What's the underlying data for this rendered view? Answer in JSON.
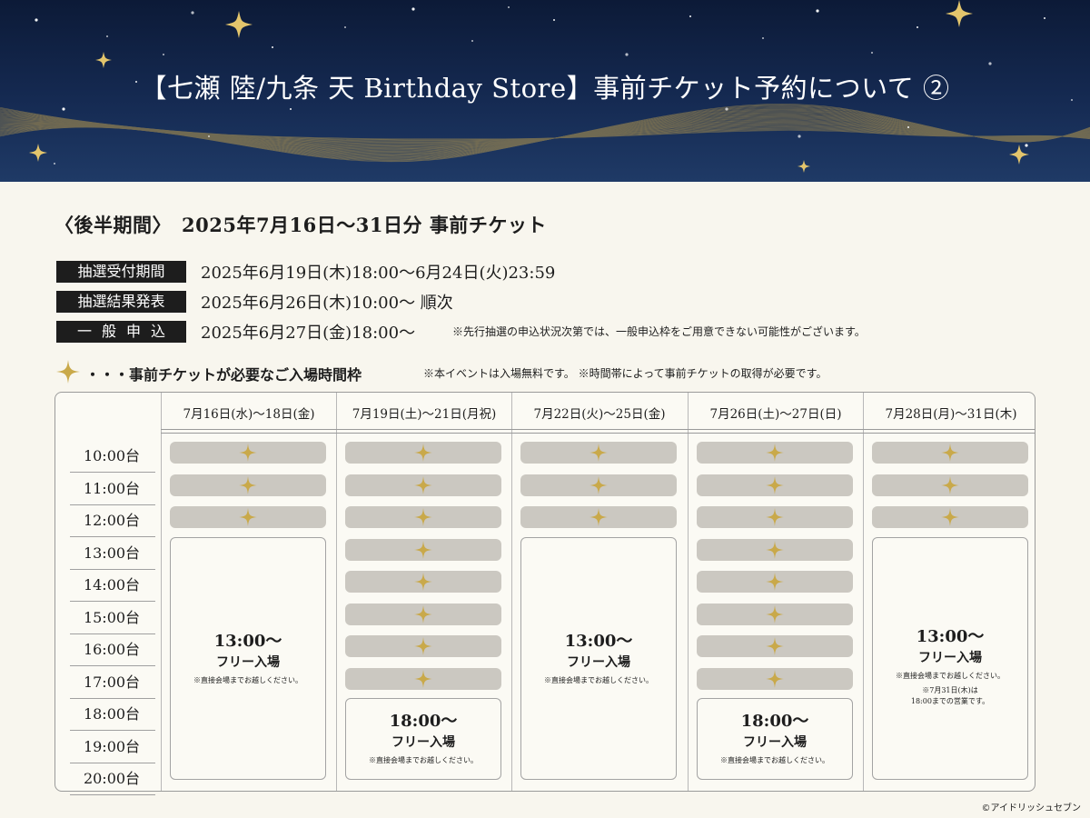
{
  "header": {
    "title": "【七瀬 陸/九条 天 Birthday Store】事前チケット予約について ②"
  },
  "subtitle": "〈後半期間〉　2025年7月16日〜31日分 事前チケット",
  "schedule": [
    {
      "label": "抽選受付期間",
      "value": "2025年6月19日(木)18:00〜6月24日(火)23:59",
      "note": ""
    },
    {
      "label": "抽選結果発表",
      "value": "2025年6月26日(木)10:00〜 順次",
      "note": ""
    },
    {
      "label": "一般申込",
      "value": "2025年6月27日(金)18:00〜",
      "note": "※先行抽選の申込状況次第では、一般申込枠をご用意できない可能性がございます。"
    }
  ],
  "slots_heading": {
    "title": "・・・事前チケットが必要なご入場時間枠",
    "note": "※本イベントは入場無料です。 ※時間帯によって事前チケットの取得が必要です。",
    "star_icon": "four-point-star-icon",
    "star_color": "#c9a94a"
  },
  "timetable": {
    "times": [
      "10:00台",
      "11:00台",
      "12:00台",
      "13:00台",
      "14:00台",
      "15:00台",
      "16:00台",
      "17:00台",
      "18:00台",
      "19:00台",
      "20:00台"
    ],
    "columns": [
      {
        "header": "7月16日(水)～18日(金)",
        "ticket_hours": [
          "10:00台",
          "11:00台",
          "12:00台"
        ],
        "free": {
          "time": "13:00〜",
          "label": "フリー入場",
          "note": "※直接会場までお越しください。",
          "extra": ""
        }
      },
      {
        "header": "7月19日(土)～21日(月祝)",
        "ticket_hours": [
          "10:00台",
          "11:00台",
          "12:00台",
          "13:00台",
          "14:00台",
          "15:00台",
          "16:00台",
          "17:00台"
        ],
        "free": {
          "time": "18:00〜",
          "label": "フリー入場",
          "note": "※直接会場までお越しください。",
          "extra": ""
        }
      },
      {
        "header": "7月22日(火)～25日(金)",
        "ticket_hours": [
          "10:00台",
          "11:00台",
          "12:00台"
        ],
        "free": {
          "time": "13:00〜",
          "label": "フリー入場",
          "note": "※直接会場までお越しください。",
          "extra": ""
        }
      },
      {
        "header": "7月26日(土)～27日(日)",
        "ticket_hours": [
          "10:00台",
          "11:00台",
          "12:00台",
          "13:00台",
          "14:00台",
          "15:00台",
          "16:00台",
          "17:00台"
        ],
        "free": {
          "time": "18:00〜",
          "label": "フリー入場",
          "note": "※直接会場までお越しください。",
          "extra": ""
        }
      },
      {
        "header": "7月28日(月)～31日(木)",
        "ticket_hours": [
          "10:00台",
          "11:00台",
          "12:00台"
        ],
        "free": {
          "time": "13:00〜",
          "label": "フリー入場",
          "note": "※直接会場までお越しください。",
          "extra": "※7月31日(木)は\n18:00までの営業です。"
        }
      }
    ]
  },
  "colors": {
    "header_bg": "#142a52",
    "gold": "#c9a94a",
    "slot_bg": "#cbc8c1",
    "badge_bg": "#1d1d1d",
    "page_bg": "#f8f6ee"
  },
  "copyright": "©アイドリッシュセブン"
}
